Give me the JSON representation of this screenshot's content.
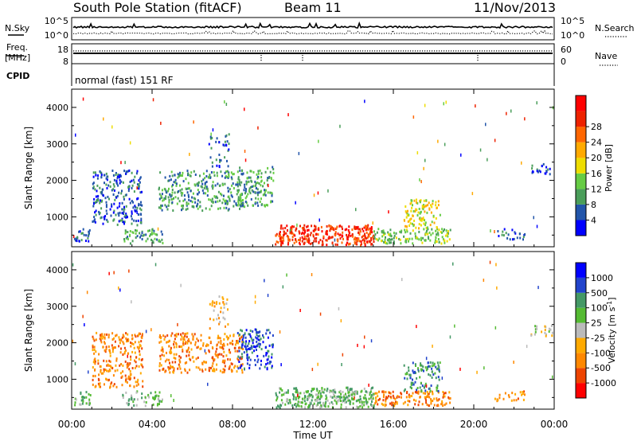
{
  "header": {
    "station": "South Pole Station (fitACF)",
    "beam": "Beam 11",
    "date": "11/Nov/2013"
  },
  "sky_panel": {
    "left_label": "N.Sky",
    "right_label": "N.Search",
    "tick_top": "10^5",
    "tick_bottom": "10^0"
  },
  "freq_panel": {
    "left_label_line1": "Freq.",
    "left_label_line2": "[MHz]",
    "left_tick_top": "18",
    "left_tick_bottom": "8",
    "right_label": "Nave",
    "right_tick_top": "60",
    "right_tick_bottom": "0"
  },
  "cpid": {
    "label": "CPID",
    "mode": "normal (fast) 151 RF"
  },
  "time_axis": {
    "label": "Time UT",
    "ticks": [
      "00:00",
      "04:00",
      "08:00",
      "12:00",
      "16:00",
      "20:00",
      "00:00"
    ]
  },
  "chart_data": [
    {
      "type": "heatmap",
      "name": "power",
      "ylabel": "Slant Range [km]",
      "y_ticks": [
        1000,
        2000,
        3000,
        4000
      ],
      "ylim": [
        180,
        4500
      ],
      "xlim_hours": [
        0,
        24
      ],
      "colorbar": {
        "label": "Power [dB]",
        "ticks": [
          "4",
          "8",
          "12",
          "16",
          "20",
          "24",
          "28"
        ],
        "colors": [
          "#0000ff",
          "#2255aa",
          "#4a9e5a",
          "#66cc44",
          "#eedd00",
          "#ffaa00",
          "#ff6600",
          "#ee2200",
          "#ff0000"
        ]
      },
      "regions": [
        {
          "t": [
            0.1,
            0.9
          ],
          "r": [
            300,
            700
          ],
          "c": 1,
          "d": 0.6
        },
        {
          "t": [
            1.0,
            3.5
          ],
          "r": [
            800,
            2300
          ],
          "c": 1,
          "d": 0.5
        },
        {
          "t": [
            2.5,
            4.5
          ],
          "r": [
            300,
            700
          ],
          "c": 2,
          "d": 0.55
        },
        {
          "t": [
            4.3,
            8.5
          ],
          "r": [
            1200,
            2300
          ],
          "c": 2,
          "d": 0.5
        },
        {
          "t": [
            6.8,
            7.8
          ],
          "r": [
            2400,
            3300
          ],
          "c": 1,
          "d": 0.3
        },
        {
          "t": [
            8.2,
            10.0
          ],
          "r": [
            1300,
            2400
          ],
          "c": 2,
          "d": 0.55
        },
        {
          "t": [
            10.1,
            15.0
          ],
          "r": [
            250,
            800
          ],
          "c": 7,
          "d": 0.9
        },
        {
          "t": [
            15.0,
            18.8
          ],
          "r": [
            300,
            700
          ],
          "c": 3,
          "d": 0.7
        },
        {
          "t": [
            16.5,
            18.3
          ],
          "r": [
            700,
            1500
          ],
          "c": 4,
          "d": 0.55
        },
        {
          "t": [
            21.0,
            22.5
          ],
          "r": [
            400,
            700
          ],
          "c": 1,
          "d": 0.4
        },
        {
          "t": [
            22.8,
            23.9
          ],
          "r": [
            2200,
            2500
          ],
          "c": 1,
          "d": 0.5
        }
      ]
    },
    {
      "type": "heatmap",
      "name": "velocity",
      "ylabel": "Slant Range [km]",
      "y_ticks": [
        1000,
        2000,
        3000,
        4000
      ],
      "ylim": [
        180,
        4500
      ],
      "xlim_hours": [
        0,
        24
      ],
      "colorbar": {
        "label": "Velocity [m s^-1]",
        "ticks": [
          "-1000",
          "-500",
          "-100",
          "-25",
          "25",
          "100",
          "500",
          "1000"
        ],
        "colors": [
          "#ff0000",
          "#ee4400",
          "#ff8800",
          "#ffaa00",
          "#bbbbbb",
          "#55bb33",
          "#449966",
          "#2244cc",
          "#0000ff"
        ]
      },
      "regions": [
        {
          "t": [
            0.1,
            0.9
          ],
          "r": [
            300,
            700
          ],
          "c": 5,
          "d": 0.6
        },
        {
          "t": [
            1.0,
            3.5
          ],
          "r": [
            800,
            2300
          ],
          "c": 2,
          "d": 0.5
        },
        {
          "t": [
            2.5,
            4.5
          ],
          "r": [
            300,
            700
          ],
          "c": 5,
          "d": 0.55
        },
        {
          "t": [
            4.3,
            8.5
          ],
          "r": [
            1200,
            2300
          ],
          "c": 2,
          "d": 0.5
        },
        {
          "t": [
            6.8,
            7.8
          ],
          "r": [
            2400,
            3300
          ],
          "c": 3,
          "d": 0.3
        },
        {
          "t": [
            8.2,
            10.0
          ],
          "r": [
            1300,
            2400
          ],
          "c": 7,
          "d": 0.55
        },
        {
          "t": [
            10.1,
            15.0
          ],
          "r": [
            250,
            800
          ],
          "c": 5,
          "d": 0.9
        },
        {
          "t": [
            15.0,
            18.8
          ],
          "r": [
            300,
            700
          ],
          "c": 2,
          "d": 0.7
        },
        {
          "t": [
            16.5,
            18.3
          ],
          "r": [
            700,
            1500
          ],
          "c": 6,
          "d": 0.55
        },
        {
          "t": [
            21.0,
            22.5
          ],
          "r": [
            400,
            700
          ],
          "c": 2,
          "d": 0.4
        },
        {
          "t": [
            22.8,
            23.9
          ],
          "r": [
            2200,
            2500
          ],
          "c": 4,
          "d": 0.5
        }
      ]
    }
  ]
}
